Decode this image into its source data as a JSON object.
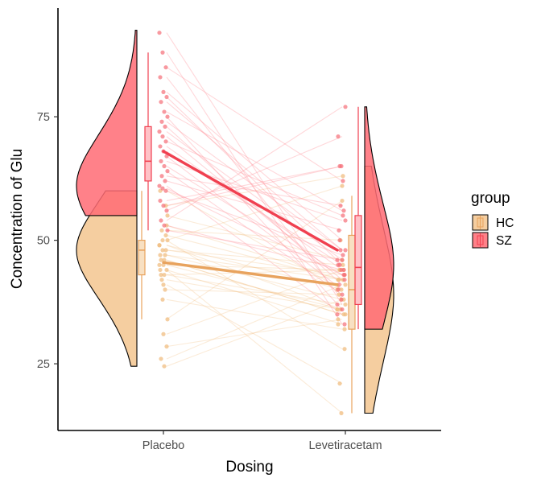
{
  "chart_data": {
    "type": "raincloud",
    "xlabel": "Dosing",
    "ylabel": "Concentration of Glu",
    "categories": [
      "Placebo",
      "Levetiracetam"
    ],
    "ylim": [
      11.5,
      97
    ],
    "yticks": [
      25,
      50,
      75
    ],
    "grid": false,
    "legend": {
      "title": "group",
      "position": "right",
      "entries": [
        "HC",
        "SZ"
      ]
    },
    "colors": {
      "HC_fill": "#f3c68f",
      "HC_line": "#e8a35e",
      "SZ_fill": "#ff6b74",
      "SZ_line": "#f04050",
      "density_outline": "#000000"
    },
    "series": [
      {
        "name": "HC",
        "mean_line": [
          45.5,
          41.0
        ],
        "points": [
          [
            49,
            40
          ],
          [
            48,
            43
          ],
          [
            51,
            42
          ],
          [
            47,
            38
          ],
          [
            45,
            44
          ],
          [
            44,
            33
          ],
          [
            43,
            37
          ],
          [
            46,
            35
          ],
          [
            55,
            46
          ],
          [
            42,
            36
          ],
          [
            40,
            39
          ],
          [
            49,
            36
          ],
          [
            50,
            28
          ],
          [
            48,
            45
          ],
          [
            60,
            40
          ],
          [
            31,
            44
          ],
          [
            28.5,
            34
          ],
          [
            26,
            41
          ],
          [
            24.5,
            38
          ],
          [
            34,
            58
          ],
          [
            52,
            50
          ],
          [
            47,
            42
          ],
          [
            45,
            36
          ],
          [
            38,
            32
          ],
          [
            57,
            63
          ],
          [
            44,
            15
          ],
          [
            41,
            21
          ],
          [
            53,
            42
          ],
          [
            46,
            35
          ],
          [
            43,
            44
          ],
          [
            50,
            61
          ]
        ],
        "boxplot": [
          {
            "min": 34,
            "q1": 43,
            "median": 48,
            "q3": 50,
            "max": 60
          },
          {
            "min": 15,
            "q1": 32,
            "median": 40,
            "q3": 51,
            "max": 59
          }
        ],
        "density": [
          {
            "min": 24.5,
            "max": 60,
            "peak": 48
          },
          {
            "min": 15,
            "max": 65,
            "peak": 39
          }
        ]
      },
      {
        "name": "SZ",
        "mean_line": [
          68,
          48
        ],
        "points": [
          [
            92,
            37
          ],
          [
            88,
            33
          ],
          [
            85,
            62
          ],
          [
            83,
            38
          ],
          [
            80,
            50
          ],
          [
            79,
            45
          ],
          [
            78,
            48
          ],
          [
            76,
            56
          ],
          [
            75,
            36
          ],
          [
            74,
            48
          ],
          [
            73,
            41
          ],
          [
            72,
            46
          ],
          [
            71,
            42
          ],
          [
            70,
            55
          ],
          [
            69,
            44
          ],
          [
            68,
            45
          ],
          [
            67,
            40
          ],
          [
            66,
            54
          ],
          [
            65,
            43
          ],
          [
            64,
            39
          ],
          [
            63,
            57
          ],
          [
            62,
            52
          ],
          [
            61,
            35
          ],
          [
            60.5,
            43
          ],
          [
            60,
            47
          ],
          [
            58,
            65
          ],
          [
            57,
            65
          ],
          [
            56,
            71
          ],
          [
            54,
            77
          ],
          [
            53,
            44
          ],
          [
            52,
            46
          ]
        ],
        "boxplot": [
          {
            "min": 52,
            "q1": 62,
            "median": 66,
            "q3": 73,
            "max": 88
          },
          {
            "min": 32,
            "q1": 37,
            "median": 44.5,
            "q3": 55,
            "max": 77
          }
        ],
        "density": [
          {
            "min": 55,
            "max": 92.5,
            "peak": 61
          },
          {
            "min": 32,
            "max": 77,
            "peak": 45
          }
        ]
      }
    ]
  }
}
